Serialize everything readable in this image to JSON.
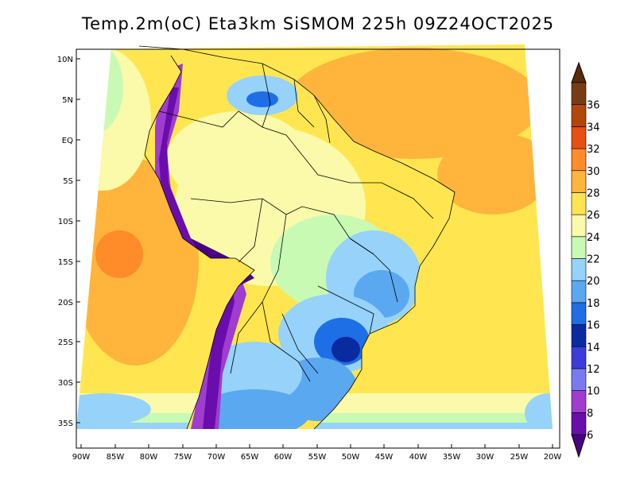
{
  "title": "Temp.2m(oC) Eta3km SiSMOM 225h 09Z24OCT2025",
  "lat_labels": [
    "10N",
    "5N",
    "EQ",
    "5S",
    "10S",
    "15S",
    "20S",
    "25S",
    "30S",
    "35S"
  ],
  "lon_labels": [
    "90W",
    "85W",
    "80W",
    "75W",
    "70W",
    "65W",
    "60W",
    "55W",
    "50W",
    "45W",
    "40W",
    "35W",
    "30W",
    "25W",
    "20W"
  ],
  "colorbar": {
    "levels": [
      "6",
      "8",
      "10",
      "12",
      "14",
      "16",
      "18",
      "20",
      "22",
      "24",
      "26",
      "28",
      "30",
      "32",
      "34",
      "36"
    ],
    "colors": [
      "#6a0dad",
      "#a03ccf",
      "#7a7af0",
      "#3c3cdc",
      "#0a2aa0",
      "#1e6ee6",
      "#5aa8f0",
      "#96d2fa",
      "#c8fab4",
      "#fafaaa",
      "#ffe650",
      "#ffb43c",
      "#ff8c28",
      "#e65014",
      "#b4460a",
      "#783c14"
    ],
    "low_color": "#4b0082",
    "high_color": "#5a2a0a"
  }
}
